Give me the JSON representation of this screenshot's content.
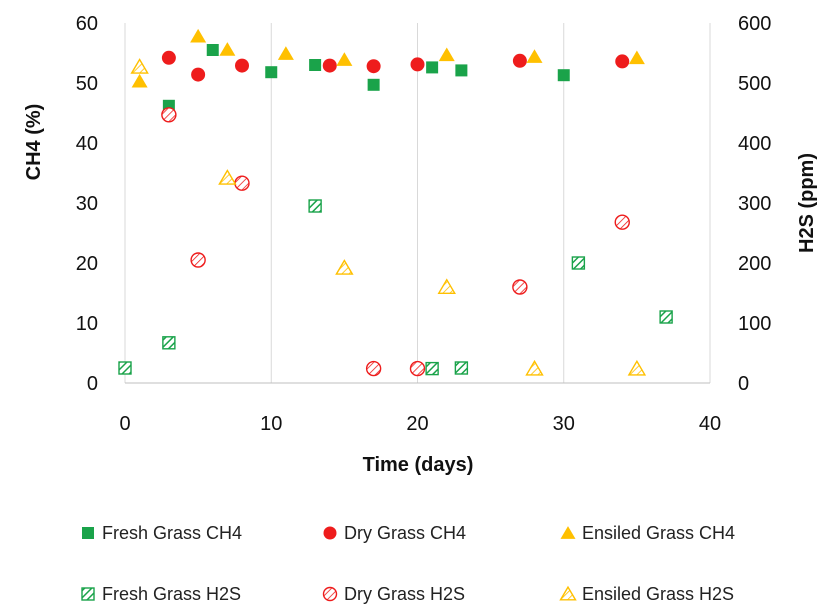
{
  "chart_data": {
    "type": "scatter",
    "xlabel": "Time (days)",
    "ylabel": "CH4 (%)",
    "y2label": "H2S (ppm)",
    "xlim": [
      0,
      40
    ],
    "ylim": [
      0,
      60
    ],
    "y2lim": [
      0,
      600
    ],
    "xticks": [
      "0",
      "10",
      "20",
      "30",
      "40"
    ],
    "yticks": [
      "0",
      "10",
      "20",
      "30",
      "40",
      "50",
      "60"
    ],
    "y2ticks": [
      "0",
      "100",
      "200",
      "300",
      "400",
      "500",
      "600"
    ],
    "grid": "vertical",
    "legend_position": "bottom",
    "colors": {
      "fresh": "#1aa34a",
      "dry": "#ee1c1c",
      "ensiled": "#ffc000"
    },
    "series": [
      {
        "name": "Fresh Grass CH4",
        "axis": "left",
        "marker": "square",
        "fill": "solid",
        "color": "#1aa34a",
        "points": [
          [
            3,
            46.2
          ],
          [
            6,
            55.5
          ],
          [
            10,
            51.8
          ],
          [
            13,
            53
          ],
          [
            17,
            49.7
          ],
          [
            21,
            52.6
          ],
          [
            23,
            52.1
          ],
          [
            30,
            51.3
          ]
        ]
      },
      {
        "name": "Dry Grass CH4",
        "axis": "left",
        "marker": "circle",
        "fill": "solid",
        "color": "#ee1c1c",
        "points": [
          [
            3,
            54.2
          ],
          [
            5,
            51.4
          ],
          [
            8,
            52.9
          ],
          [
            14,
            52.9
          ],
          [
            17,
            52.8
          ],
          [
            20,
            53.1
          ],
          [
            27,
            53.7
          ],
          [
            34,
            53.6
          ]
        ]
      },
      {
        "name": "Ensiled Grass CH4",
        "axis": "left",
        "marker": "triangle",
        "fill": "solid",
        "color": "#ffc000",
        "points": [
          [
            1,
            50.3
          ],
          [
            5,
            57.8
          ],
          [
            7,
            55.6
          ],
          [
            11,
            54.9
          ],
          [
            15,
            53.9
          ],
          [
            22,
            54.7
          ],
          [
            28,
            54.4
          ],
          [
            35,
            54.2
          ]
        ]
      },
      {
        "name": "Fresh Grass H2S",
        "axis": "right",
        "marker": "square",
        "fill": "hatched",
        "color": "#1aa34a",
        "points": [
          [
            0,
            25
          ],
          [
            3,
            67
          ],
          [
            13,
            295
          ],
          [
            21,
            24
          ],
          [
            23,
            25
          ],
          [
            31,
            200
          ],
          [
            37,
            110
          ]
        ]
      },
      {
        "name": "Dry Grass H2S",
        "axis": "right",
        "marker": "circle",
        "fill": "hatched",
        "color": "#ee1c1c",
        "points": [
          [
            3,
            447
          ],
          [
            5,
            205
          ],
          [
            8,
            333
          ],
          [
            17,
            24
          ],
          [
            20,
            24
          ],
          [
            27,
            160
          ],
          [
            34,
            268
          ]
        ]
      },
      {
        "name": "Ensiled Grass H2S",
        "axis": "right",
        "marker": "triangle",
        "fill": "hatched",
        "color": "#ffc000",
        "points": [
          [
            1,
            527
          ],
          [
            7,
            342
          ],
          [
            15,
            192
          ],
          [
            22,
            160
          ],
          [
            28,
            24
          ],
          [
            35,
            24
          ]
        ]
      }
    ]
  }
}
